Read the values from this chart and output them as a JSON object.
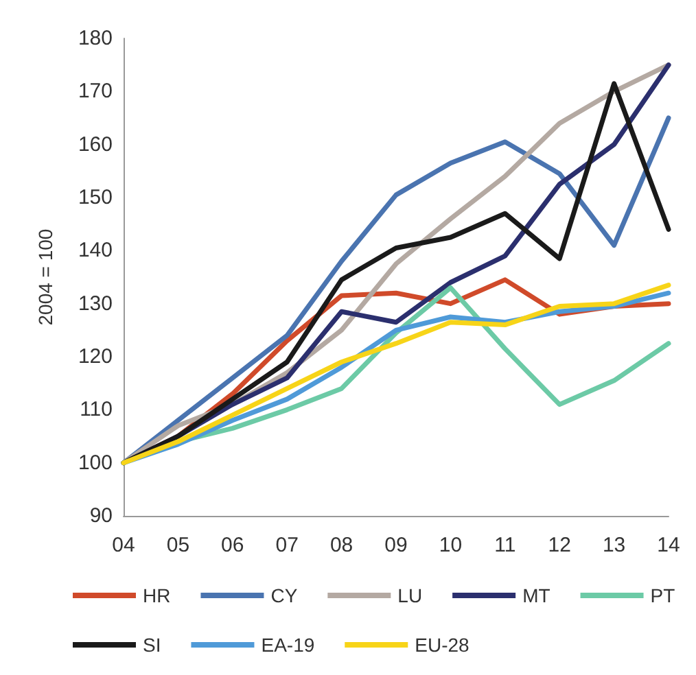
{
  "chart_data": {
    "type": "line",
    "ylabel": "2004 = 100",
    "categories": [
      "04",
      "05",
      "06",
      "07",
      "08",
      "09",
      "10",
      "11",
      "12",
      "13",
      "14"
    ],
    "series": [
      {
        "name": "HR",
        "color": "#d04a2a",
        "values": [
          100,
          105,
          113,
          123,
          131.5,
          132,
          130,
          134.5,
          128,
          129.5,
          130
        ]
      },
      {
        "name": "CY",
        "color": "#4a74b0",
        "values": [
          100,
          108,
          116,
          124,
          138,
          150.5,
          156.5,
          160.5,
          154.5,
          141,
          165
        ]
      },
      {
        "name": "LU",
        "color": "#b4a9a2",
        "values": [
          100,
          107,
          111,
          117,
          125,
          137.5,
          146,
          154,
          164,
          170,
          175
        ]
      },
      {
        "name": "MT",
        "color": "#2b2f6e",
        "values": [
          100,
          105,
          111,
          116,
          128.5,
          126.5,
          134,
          139,
          152.5,
          160,
          175
        ]
      },
      {
        "name": "PT",
        "color": "#6ccaa6",
        "values": [
          100,
          104,
          106.5,
          110,
          114,
          124.5,
          133,
          121.5,
          111,
          115.5,
          122.5
        ]
      },
      {
        "name": "SI",
        "color": "#1a1a1a",
        "values": [
          100,
          105,
          112,
          119,
          134.5,
          140.5,
          142.5,
          147,
          138.5,
          171.5,
          144
        ]
      },
      {
        "name": "EA-19",
        "color": "#4f9ad8",
        "values": [
          100,
          103.5,
          108,
          112,
          118,
          125,
          127.5,
          126.5,
          128.5,
          129.5,
          132
        ]
      },
      {
        "name": "EU-28",
        "color": "#f7d418",
        "values": [
          100,
          104,
          109,
          114,
          119,
          122.5,
          126.5,
          126,
          129.5,
          130,
          133.5
        ]
      }
    ],
    "ylim": [
      90,
      180
    ],
    "yticks": [
      90,
      100,
      110,
      120,
      130,
      140,
      150,
      160,
      170,
      180
    ],
    "grid": false,
    "legend": "bottom",
    "marker": "none",
    "line_style": "solid"
  }
}
